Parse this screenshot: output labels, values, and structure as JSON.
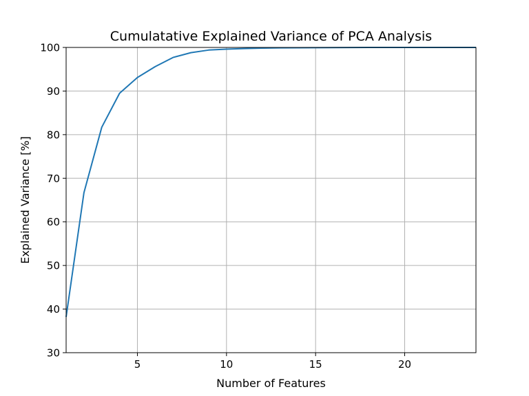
{
  "chart_data": {
    "type": "line",
    "title": "Cumulatative Explained Variance of PCA Analysis",
    "xlabel": "Number of Features",
    "ylabel": "Explained Variance [%]",
    "xlim": [
      1,
      24
    ],
    "ylim": [
      30,
      100
    ],
    "xticks": [
      5,
      10,
      15,
      20
    ],
    "yticks": [
      30,
      40,
      50,
      60,
      70,
      80,
      90,
      100
    ],
    "grid": true,
    "legend": "none",
    "series": [
      {
        "color": "#1f77b4",
        "x": [
          1,
          2,
          3,
          4,
          5,
          6,
          7,
          8,
          9,
          10,
          11,
          12,
          13,
          14,
          15,
          16,
          17,
          18,
          19,
          20,
          21,
          22,
          23,
          24
        ],
        "y": [
          38.2,
          66.7,
          81.7,
          89.5,
          93.1,
          95.6,
          97.7,
          98.8,
          99.4,
          99.6,
          99.75,
          99.85,
          99.9,
          99.93,
          99.95,
          99.97,
          99.98,
          99.99,
          99.99,
          100.0,
          100.0,
          100.0,
          100.0,
          100.0
        ]
      }
    ]
  }
}
